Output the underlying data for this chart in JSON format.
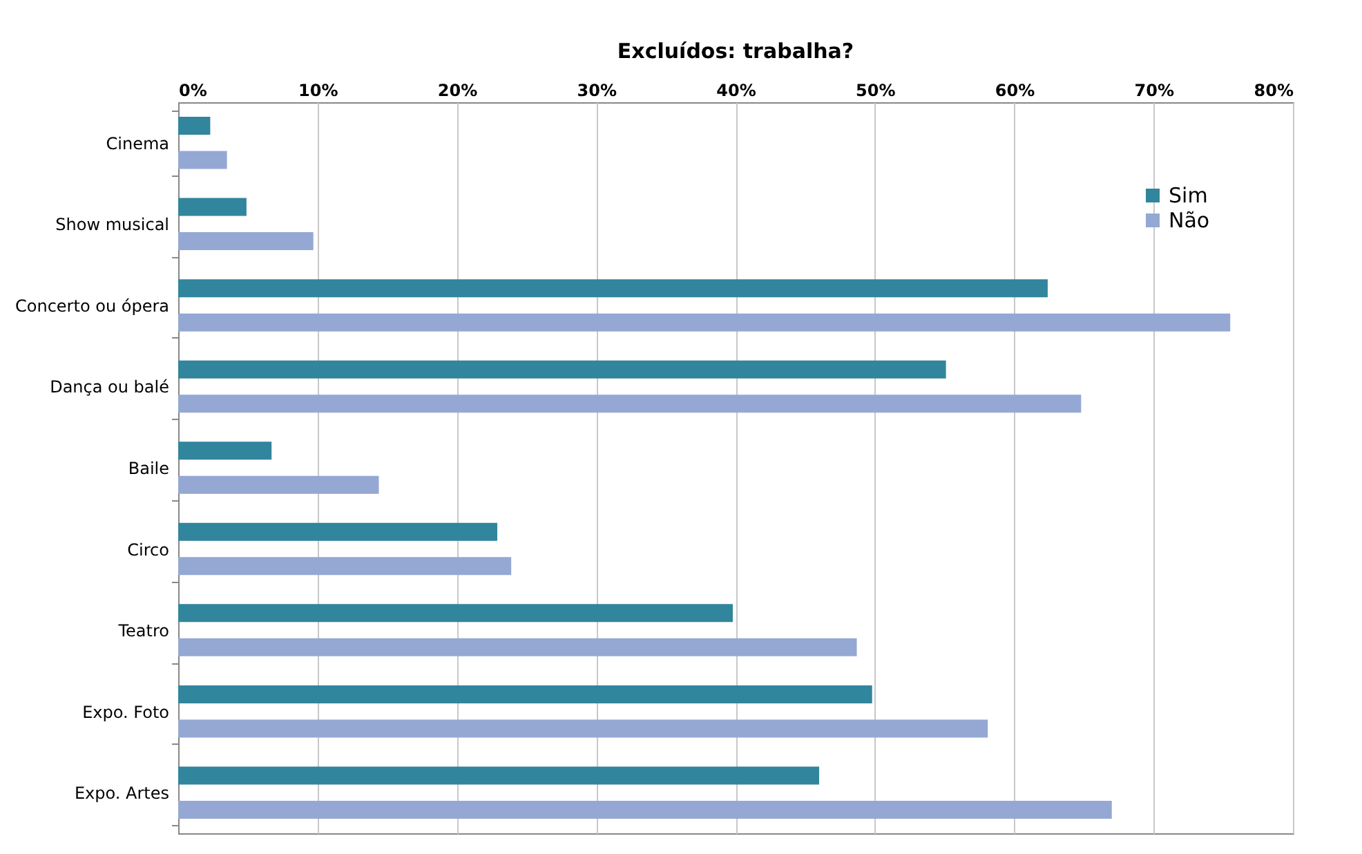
{
  "chart_data": {
    "type": "bar",
    "orientation": "horizontal",
    "title": "Excluídos: trabalha?",
    "categories": [
      "Cinema",
      "Show musical",
      "Concerto ou ópera",
      "Dança ou balé",
      "Baile",
      "Circo",
      "Teatro",
      "Expo. Foto",
      "Expo. Artes"
    ],
    "series": [
      {
        "name": "Sim",
        "color": "#31859c",
        "values": [
          2.3,
          4.9,
          62.4,
          55.1,
          6.7,
          22.9,
          39.8,
          49.8,
          46.0
        ]
      },
      {
        "name": "Não",
        "color": "#95a8d4",
        "values": [
          3.5,
          9.7,
          75.5,
          64.8,
          14.4,
          23.9,
          48.7,
          58.1,
          67.0
        ]
      }
    ],
    "xlim": [
      0,
      80
    ],
    "xticks": [
      {
        "value": 0,
        "label": "0%"
      },
      {
        "value": 10,
        "label": "10%"
      },
      {
        "value": 20,
        "label": "20%"
      },
      {
        "value": 30,
        "label": "30%"
      },
      {
        "value": 40,
        "label": "40%"
      },
      {
        "value": 50,
        "label": "50%"
      },
      {
        "value": 60,
        "label": "60%"
      },
      {
        "value": 70,
        "label": "70%"
      },
      {
        "value": 80,
        "label": "80%"
      }
    ],
    "grid": "x",
    "legend": "top right"
  }
}
